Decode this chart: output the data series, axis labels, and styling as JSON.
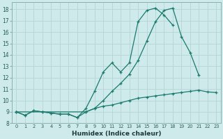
{
  "xlabel": "Humidex (Indice chaleur)",
  "bg_color": "#ceeaea",
  "grid_color": "#b8d8d8",
  "line_color": "#1a7a6e",
  "x_values": [
    0,
    1,
    2,
    3,
    4,
    5,
    6,
    7,
    8,
    9,
    10,
    11,
    12,
    13,
    14,
    15,
    16,
    17,
    18,
    19,
    20,
    21,
    22,
    23
  ],
  "line1": [
    9.0,
    8.7,
    9.1,
    9.0,
    8.9,
    8.8,
    8.8,
    8.5,
    9.3,
    10.8,
    12.5,
    13.3,
    12.5,
    13.3,
    16.9,
    17.9,
    18.1,
    17.5,
    16.6,
    null,
    null,
    null,
    null,
    null
  ],
  "line2": [
    9.0,
    8.7,
    9.1,
    9.0,
    8.9,
    8.8,
    8.8,
    8.5,
    9.0,
    9.3,
    10.0,
    10.8,
    11.5,
    12.3,
    13.5,
    15.2,
    16.9,
    17.9,
    18.1,
    15.6,
    14.2,
    12.2,
    null,
    null
  ],
  "line3": [
    9.0,
    null,
    null,
    null,
    null,
    null,
    null,
    null,
    9.0,
    9.3,
    9.5,
    9.6,
    9.8,
    10.0,
    10.2,
    10.3,
    10.4,
    10.5,
    10.6,
    10.7,
    10.8,
    10.9,
    10.75,
    10.7
  ],
  "xlim": [
    -0.5,
    23.5
  ],
  "ylim": [
    8.0,
    18.6
  ],
  "yticks": [
    8,
    9,
    10,
    11,
    12,
    13,
    14,
    15,
    16,
    17,
    18
  ],
  "xtick_labels": [
    "0",
    "1",
    "2",
    "3",
    "4",
    "5",
    "6",
    "7",
    "8",
    "9",
    "10",
    "11",
    "12",
    "13",
    "14",
    "15",
    "16",
    "17",
    "18",
    "19",
    "20",
    "21",
    "22",
    "23"
  ]
}
